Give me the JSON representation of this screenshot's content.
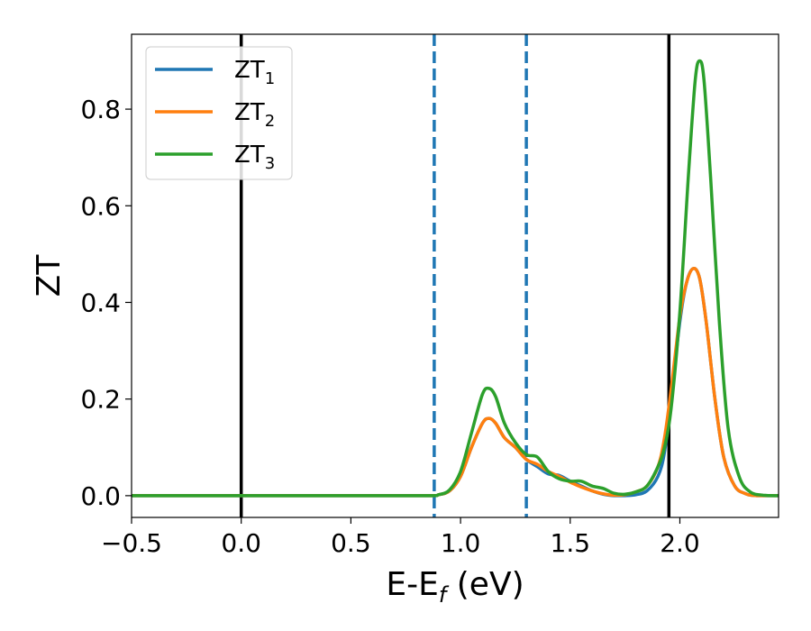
{
  "chart_data": {
    "type": "line",
    "xlabel": "E-E",
    "xlabel_sub": "f",
    "xlabel_unit": " (eV)",
    "ylabel": "ZT",
    "xlim": [
      -0.5,
      2.45
    ],
    "ylim": [
      -0.045,
      0.955
    ],
    "xticks": [
      -0.5,
      0.0,
      0.5,
      1.0,
      1.5,
      2.0
    ],
    "xtick_labels": [
      "−0.5",
      "0.0",
      "0.5",
      "1.0",
      "1.5",
      "2.0"
    ],
    "yticks": [
      0.0,
      0.2,
      0.4,
      0.6,
      0.8
    ],
    "ytick_labels": [
      "0.0",
      "0.2",
      "0.4",
      "0.6",
      "0.8"
    ],
    "grid": false,
    "legend_position": "top-left",
    "vlines": [
      {
        "x": 0.0,
        "style": "solid",
        "color": "#000000"
      },
      {
        "x": 1.95,
        "style": "solid",
        "color": "#000000"
      },
      {
        "x": 0.88,
        "style": "dashed",
        "color": "#1f77b4"
      },
      {
        "x": 1.3,
        "style": "dashed",
        "color": "#1f77b4"
      }
    ],
    "series": [
      {
        "name": "ZT",
        "name_sub": "1",
        "color": "#1f77b4",
        "x": [
          -0.5,
          0.0,
          0.5,
          0.85,
          0.9,
          0.95,
          1.0,
          1.05,
          1.1,
          1.13,
          1.16,
          1.2,
          1.25,
          1.3,
          1.35,
          1.4,
          1.45,
          1.5,
          1.55,
          1.6,
          1.65,
          1.7,
          1.75,
          1.8,
          1.85,
          1.9,
          1.93,
          1.96,
          2.0,
          2.03,
          2.06,
          2.09,
          2.12,
          2.16,
          2.2,
          2.25,
          2.3,
          2.35,
          2.45
        ],
        "y": [
          0.0,
          0.0,
          0.0,
          0.0,
          0.002,
          0.01,
          0.04,
          0.1,
          0.15,
          0.16,
          0.15,
          0.12,
          0.1,
          0.075,
          0.06,
          0.045,
          0.042,
          0.03,
          0.02,
          0.01,
          0.003,
          0.0,
          0.0,
          0.002,
          0.01,
          0.04,
          0.09,
          0.2,
          0.36,
          0.44,
          0.47,
          0.45,
          0.36,
          0.2,
          0.08,
          0.02,
          0.004,
          0.0,
          0.0
        ]
      },
      {
        "name": "ZT",
        "name_sub": "2",
        "color": "#ff7f0e",
        "x": [
          -0.5,
          0.0,
          0.5,
          0.85,
          0.9,
          0.95,
          1.0,
          1.05,
          1.1,
          1.13,
          1.16,
          1.2,
          1.25,
          1.3,
          1.35,
          1.4,
          1.45,
          1.5,
          1.55,
          1.6,
          1.65,
          1.7,
          1.75,
          1.8,
          1.85,
          1.9,
          1.93,
          1.96,
          2.0,
          2.03,
          2.06,
          2.09,
          2.12,
          2.16,
          2.2,
          2.25,
          2.3,
          2.35,
          2.45
        ],
        "y": [
          0.0,
          0.0,
          0.0,
          0.0,
          0.002,
          0.01,
          0.04,
          0.1,
          0.15,
          0.16,
          0.15,
          0.12,
          0.1,
          0.075,
          0.065,
          0.05,
          0.04,
          0.028,
          0.018,
          0.01,
          0.004,
          0.001,
          0.002,
          0.008,
          0.02,
          0.06,
          0.12,
          0.22,
          0.37,
          0.44,
          0.47,
          0.45,
          0.36,
          0.2,
          0.08,
          0.02,
          0.004,
          0.0,
          0.0
        ]
      },
      {
        "name": "ZT",
        "name_sub": "3",
        "color": "#2ca02c",
        "x": [
          -0.5,
          0.0,
          0.5,
          0.85,
          0.9,
          0.95,
          1.0,
          1.05,
          1.1,
          1.13,
          1.16,
          1.2,
          1.25,
          1.3,
          1.35,
          1.4,
          1.45,
          1.5,
          1.55,
          1.6,
          1.65,
          1.7,
          1.75,
          1.8,
          1.85,
          1.9,
          1.93,
          1.96,
          2.0,
          2.04,
          2.07,
          2.09,
          2.11,
          2.14,
          2.18,
          2.22,
          2.27,
          2.32,
          2.38,
          2.45
        ],
        "y": [
          0.0,
          0.0,
          0.0,
          0.0,
          0.002,
          0.012,
          0.05,
          0.13,
          0.21,
          0.222,
          0.205,
          0.15,
          0.11,
          0.085,
          0.08,
          0.05,
          0.035,
          0.03,
          0.03,
          0.02,
          0.015,
          0.005,
          0.003,
          0.008,
          0.02,
          0.06,
          0.1,
          0.18,
          0.38,
          0.67,
          0.86,
          0.9,
          0.86,
          0.66,
          0.36,
          0.14,
          0.04,
          0.008,
          0.001,
          0.0
        ]
      }
    ]
  }
}
